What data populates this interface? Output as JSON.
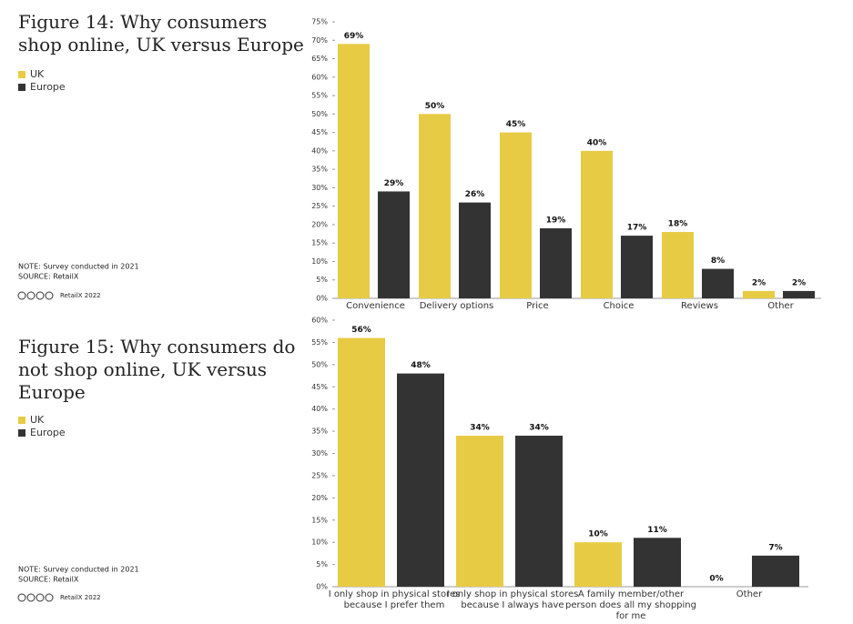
{
  "chart_data": [
    {
      "type": "bar",
      "title": "Figure 14: Why consumers shop online, UK versus Europe",
      "categories": [
        "Convenience",
        "Delivery options",
        "Price",
        "Choice",
        "Reviews",
        "Other"
      ],
      "series": [
        {
          "name": "UK",
          "color": "#e8cb45",
          "values": [
            69,
            50,
            45,
            40,
            18,
            2
          ],
          "value_labels": [
            "69%",
            "50%",
            "45%",
            "40%",
            "18%",
            "2%"
          ]
        },
        {
          "name": "Europe",
          "color": "#333333",
          "values": [
            29,
            26,
            19,
            17,
            8,
            2
          ],
          "value_labels": [
            "29%",
            "26%",
            "19%",
            "17%",
            "8%",
            "2%"
          ]
        }
      ],
      "ylim": [
        0,
        75
      ],
      "yticks": [
        {
          "value": 0,
          "label": "0%"
        },
        {
          "value": 5,
          "label": "5%"
        },
        {
          "value": 10,
          "label": "10%"
        },
        {
          "value": 15,
          "label": "15%"
        },
        {
          "value": 20,
          "label": "20%"
        },
        {
          "value": 25,
          "label": "25%"
        },
        {
          "value": 30,
          "label": "30%"
        },
        {
          "value": 35,
          "label": "35%"
        },
        {
          "value": 40,
          "label": "40%"
        },
        {
          "value": 45,
          "label": "45%"
        },
        {
          "value": 50,
          "label": "50%"
        },
        {
          "value": 55,
          "label": "55%"
        },
        {
          "value": 60,
          "label": "60%"
        },
        {
          "value": 65,
          "label": "65%"
        },
        {
          "value": 70,
          "label": "70%"
        },
        {
          "value": 75,
          "label": "75%"
        }
      ],
      "note": "NOTE: Survey conducted in 2021",
      "source": "SOURCE: RetailX",
      "credit": "RetailX 2022"
    },
    {
      "type": "bar",
      "title": "Figure 15: Why consumers do not shop online, UK versus Europe",
      "categories": [
        "I only shop in physical stores because I prefer them",
        "I only shop in physical stores because I always have",
        "A family member/other person does all my shopping for me",
        "Other"
      ],
      "series": [
        {
          "name": "UK",
          "color": "#e8cb45",
          "values": [
            56,
            34,
            10,
            0
          ],
          "value_labels": [
            "56%",
            "34%",
            "10%",
            "0%"
          ]
        },
        {
          "name": "Europe",
          "color": "#333333",
          "values": [
            48,
            34,
            11,
            7
          ],
          "value_labels": [
            "48%",
            "34%",
            "11%",
            "7%"
          ]
        }
      ],
      "ylim": [
        0,
        60
      ],
      "yticks": [
        {
          "value": 0,
          "label": "0%"
        },
        {
          "value": 5,
          "label": "5%"
        },
        {
          "value": 10,
          "label": "10%"
        },
        {
          "value": 15,
          "label": "15%"
        },
        {
          "value": 20,
          "label": "20%"
        },
        {
          "value": 25,
          "label": "25%"
        },
        {
          "value": 30,
          "label": "30%"
        },
        {
          "value": 35,
          "label": "35%"
        },
        {
          "value": 40,
          "label": "40%"
        },
        {
          "value": 45,
          "label": "45%"
        },
        {
          "value": 50,
          "label": "50%"
        },
        {
          "value": 55,
          "label": "55%"
        },
        {
          "value": 60,
          "label": "60%"
        }
      ],
      "note": "NOTE: Survey conducted in 2021",
      "source": "SOURCE: RetailX",
      "credit": "RetailX 2022"
    }
  ]
}
